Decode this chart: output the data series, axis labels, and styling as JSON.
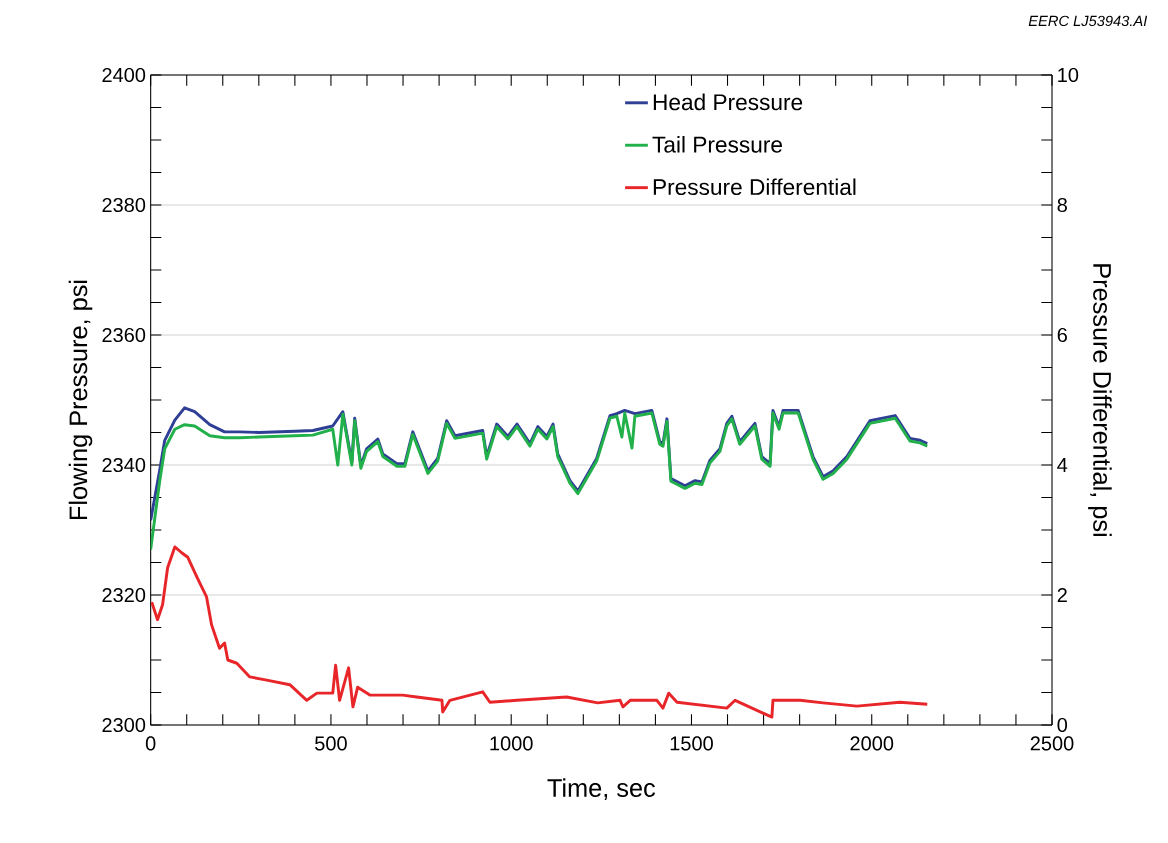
{
  "chart_data": {
    "type": "line",
    "xlabel": "Time, sec",
    "ylabel": "Flowing Pressure, psi",
    "y2label": "Pressure Differential, psi",
    "annotations": [
      "EERC LJ53943.AI"
    ],
    "xlim": [
      0,
      2500
    ],
    "xticks": [
      0,
      500,
      1000,
      1500,
      2000,
      2500
    ],
    "ylim": [
      2300,
      2400
    ],
    "yticks": [
      2300,
      2320,
      2340,
      2360,
      2380,
      2400
    ],
    "y2lim": [
      0,
      10
    ],
    "y2ticks": [
      0,
      2,
      4,
      6,
      8,
      10
    ],
    "grid": "y",
    "legend": "top right",
    "marker": "none",
    "line_style": "solid",
    "series": [
      {
        "name": "Head Pressure",
        "color": "#2e3f95",
        "axis": "y",
        "x": [
          0,
          25,
          39,
          67,
          94,
          122,
          164,
          205,
          247,
          300,
          400,
          450,
          505,
          519,
          533,
          558,
          566,
          583,
          599,
          630,
          644,
          683,
          705,
          727,
          769,
          796,
          821,
          844,
          921,
          932,
          960,
          991,
          1016,
          1052,
          1074,
          1099,
          1116,
          1129,
          1163,
          1185,
          1237,
          1274,
          1293,
          1307,
          1315,
          1335,
          1343,
          1390,
          1412,
          1421,
          1432,
          1443,
          1454,
          1482,
          1510,
          1529,
          1551,
          1579,
          1598,
          1612,
          1634,
          1676,
          1695,
          1718,
          1726,
          1743,
          1754,
          1796,
          1837,
          1865,
          1893,
          1931,
          1995,
          2065,
          2106,
          2134,
          2154
        ],
        "values": [
          2331.5,
          2339.2,
          2343.8,
          2346.9,
          2348.8,
          2348.2,
          2346.2,
          2345.1,
          2345.1,
          2345.0,
          2345.2,
          2345.3,
          2346.0,
          null,
          2348.2,
          2340.4,
          2347.2,
          2339.9,
          2342.5,
          2344.0,
          2341.7,
          2340.2,
          2340.2,
          2345.1,
          2339.1,
          2341.0,
          2346.8,
          2344.5,
          2345.3,
          2341.3,
          2346.3,
          2344.4,
          2346.3,
          2343.3,
          2345.9,
          2344.4,
          2346.3,
          2341.7,
          2337.6,
          2336.0,
          2341.0,
          2347.6,
          2347.9,
          null,
          2348.4,
          null,
          2347.9,
          2348.4,
          2343.6,
          2343.3,
          2347.1,
          2337.9,
          2337.6,
          2336.8,
          2337.6,
          2337.4,
          2340.7,
          2342.5,
          2346.4,
          2347.5,
          2343.6,
          2346.4,
          2341.3,
          2340.2,
          2348.4,
          2345.9,
          2348.4,
          2348.4,
          2341.3,
          2338.2,
          2339.1,
          2341.3,
          2346.8,
          2347.6,
          2344.1,
          2343.8,
          2343.3
        ]
      },
      {
        "name": "Tail Pressure",
        "color": "#22b04b",
        "axis": "y",
        "x": [
          0,
          25,
          39,
          67,
          94,
          122,
          164,
          205,
          247,
          300,
          400,
          450,
          505,
          519,
          533,
          558,
          566,
          583,
          599,
          630,
          644,
          683,
          705,
          727,
          769,
          796,
          821,
          844,
          921,
          932,
          960,
          991,
          1016,
          1052,
          1074,
          1099,
          1116,
          1129,
          1163,
          1185,
          1237,
          1274,
          1293,
          1307,
          1315,
          1335,
          1343,
          1390,
          1412,
          1421,
          1432,
          1443,
          1454,
          1482,
          1510,
          1529,
          1551,
          1579,
          1598,
          1612,
          1634,
          1676,
          1695,
          1718,
          1726,
          1743,
          1754,
          1796,
          1837,
          1865,
          1893,
          1931,
          1995,
          2065,
          2106,
          2134,
          2154
        ],
        "values": [
          2327.0,
          2337.5,
          2342.5,
          2345.5,
          2346.2,
          2346.0,
          2344.5,
          2344.2,
          2344.2,
          2344.3,
          2344.5,
          2344.6,
          2345.5,
          2340.0,
          2347.8,
          2340.0,
          2346.8,
          2339.5,
          2342.1,
          2343.6,
          2341.3,
          2339.8,
          2339.8,
          2344.7,
          2338.7,
          2340.6,
          2346.4,
          2344.1,
          2344.9,
          2340.9,
          2345.9,
          2344.0,
          2345.9,
          2342.9,
          2345.5,
          2344.0,
          2345.9,
          2341.3,
          2337.2,
          2335.6,
          2340.6,
          2347.2,
          2347.5,
          2344.3,
          2348.0,
          2342.6,
          2347.5,
          2348.0,
          2343.2,
          2342.9,
          2346.7,
          2337.5,
          2337.2,
          2336.4,
          2337.2,
          2337.0,
          2340.3,
          2342.1,
          2346.0,
          2347.1,
          2343.2,
          2346.0,
          2340.9,
          2339.8,
          2348.0,
          2345.5,
          2348.0,
          2348.0,
          2340.9,
          2337.8,
          2338.7,
          2340.9,
          2346.4,
          2347.2,
          2343.7,
          2343.4,
          2342.9
        ]
      },
      {
        "name": "Pressure Differential",
        "color": "#e8262a",
        "axis": "y2",
        "x": [
          3,
          19,
          33,
          47,
          67,
          86,
          103,
          128,
          155,
          169,
          191,
          205,
          214,
          239,
          275,
          322,
          386,
          433,
          461,
          505,
          513,
          524,
          549,
          561,
          574,
          608,
          699,
          738,
          808,
          810,
          830,
          921,
          941,
          1016,
          1154,
          1240,
          1302,
          1310,
          1330,
          1404,
          1421,
          1437,
          1460,
          1598,
          1621,
          1723,
          1726,
          1801,
          1865,
          1959,
          2078,
          2154
        ],
        "values": [
          1.89,
          1.62,
          1.85,
          2.42,
          2.74,
          2.65,
          2.58,
          2.28,
          1.97,
          1.54,
          1.18,
          1.26,
          1.0,
          0.95,
          0.74,
          0.69,
          0.62,
          0.38,
          0.49,
          0.49,
          0.92,
          0.38,
          0.88,
          0.28,
          0.58,
          0.46,
          0.46,
          0.43,
          0.38,
          0.2,
          0.38,
          0.51,
          0.35,
          0.38,
          0.43,
          0.34,
          0.38,
          0.28,
          0.38,
          0.38,
          0.26,
          0.49,
          0.35,
          0.26,
          0.38,
          0.12,
          0.38,
          0.38,
          0.34,
          0.29,
          0.35,
          0.32
        ]
      }
    ]
  }
}
